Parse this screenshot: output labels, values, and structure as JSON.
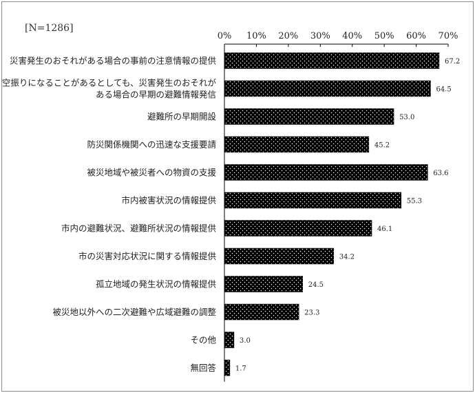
{
  "sample_label": "[N=1286]",
  "chart_data": {
    "type": "bar",
    "orientation": "horizontal",
    "categories": [
      [
        "災害発生のおそれがある場合の事前の注意情報の提供"
      ],
      [
        "空振りになることがあるとしても、災害発生のおそれが",
        "ある場合の早期の避難情報発信"
      ],
      [
        "避難所の早期開設"
      ],
      [
        "防災関係機関への迅速な支援要請"
      ],
      [
        "被災地域や被災者への物資の支援"
      ],
      [
        "市内被害状況の情報提供"
      ],
      [
        "市内の避難状況、避難所状況の情報提供"
      ],
      [
        "市の災害対応状況に関する情報提供"
      ],
      [
        "孤立地域の発生状況の情報提供"
      ],
      [
        "被災地以外への二次避難や広域避難の調整"
      ],
      [
        "その他"
      ],
      [
        "無回答"
      ]
    ],
    "values": [
      67.2,
      64.5,
      53.0,
      45.2,
      63.6,
      55.3,
      46.1,
      34.2,
      24.5,
      23.3,
      3.0,
      1.7
    ],
    "value_labels": [
      "67.2",
      "64.5",
      "53.0",
      "45.2",
      "63.6",
      "55.3",
      "46.1",
      "34.2",
      "24.5",
      "23.3",
      "3.0",
      "1.7"
    ],
    "xticks": [
      "0%",
      "10%",
      "20%",
      "30%",
      "40%",
      "50%",
      "60%",
      "70%"
    ],
    "xlim": [
      0,
      70
    ],
    "axis_position": "top",
    "grid": false,
    "bar_color": "#000000",
    "bar_pattern": "white-dots"
  }
}
